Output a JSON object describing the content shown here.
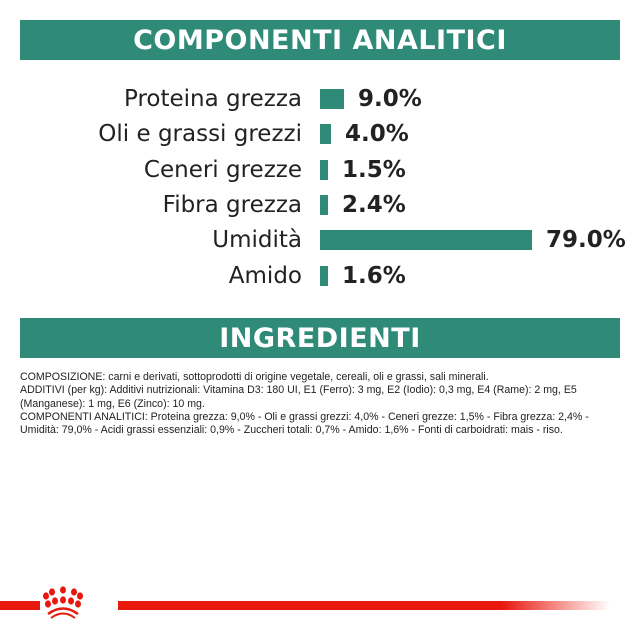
{
  "analytic_header": "COMPONENTI ANALITICI",
  "ingredients_header": "INGREDIENTI",
  "components": [
    {
      "label": "Proteina grezza",
      "value": 9.0,
      "display": "9.0%"
    },
    {
      "label": "Oli e grassi grezzi",
      "value": 4.0,
      "display": "4.0%"
    },
    {
      "label": "Ceneri grezze",
      "value": 1.5,
      "display": "1.5%"
    },
    {
      "label": "Fibra grezza",
      "value": 2.4,
      "display": "2.4%"
    },
    {
      "label": "Umidità",
      "value": 79.0,
      "display": "79.0%"
    },
    {
      "label": "Amido",
      "value": 1.6,
      "display": "1.6%"
    }
  ],
  "ingredients_text": [
    "COMPOSIZIONE: carni e derivati, sottoprodotti di origine vegetale, cereali, oli e grassi, sali minerali.",
    "ADDITIVI (per kg): Additivi nutrizionali: Vitamina D3: 180 UI, E1 (Ferro): 3 mg, E2 (Iodio): 0,3 mg, E4 (Rame): 2 mg, E5 (Manganese): 1 mg, E6 (Zinco): 10 mg.",
    "COMPONENTI ANALITICI: Proteina grezza: 9,0% - Oli e grassi grezzi: 4,0% - Ceneri grezze: 1,5% - Fibra grezza: 2,4% - Umidità: 79,0% - Acidi grassi essenziali: 0,9% - Zuccheri totali: 0,7% - Amido: 1,6% - Fonti di carboidrati: mais - riso."
  ],
  "colors": {
    "accent": "#2f8b77",
    "brand_red": "#e8180c"
  },
  "logo": "royal-canin-crown"
}
